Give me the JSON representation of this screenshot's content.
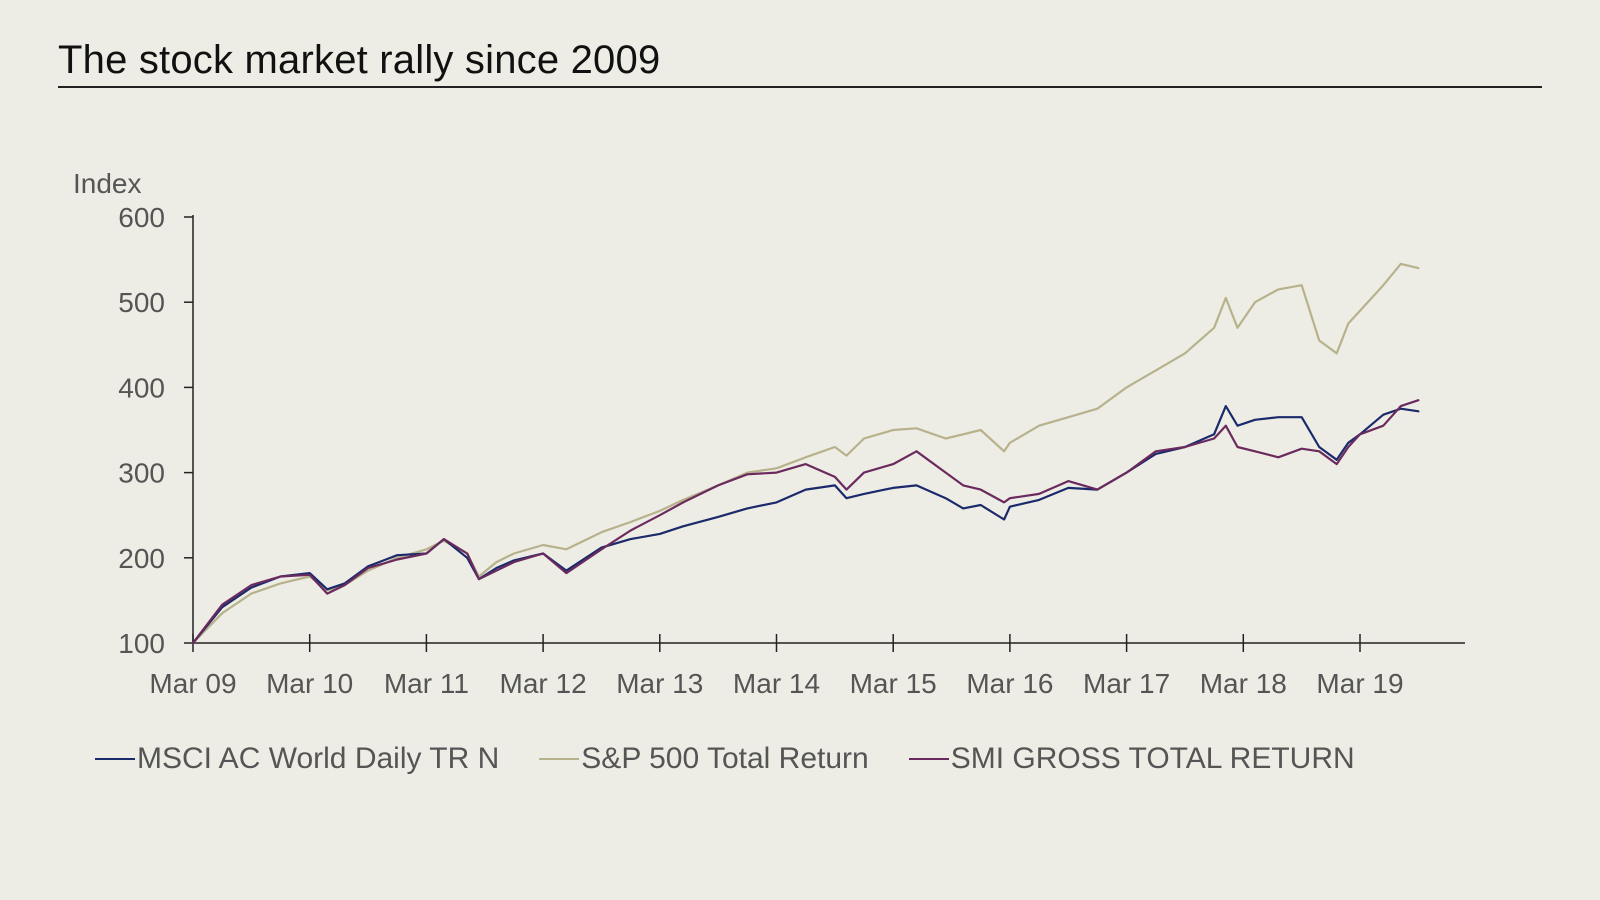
{
  "title": "The stock market rally since 2009",
  "chart_data": {
    "type": "line",
    "title": "The stock market rally since 2009",
    "ylabel": "Index",
    "xlabel": "",
    "ylim": [
      100,
      600
    ],
    "yticks": [
      "100",
      "200",
      "300",
      "400",
      "500",
      "600"
    ],
    "xticks": [
      "Mar 09",
      "Mar 10",
      "Mar 11",
      "Mar 12",
      "Mar 13",
      "Mar 14",
      "Mar 15",
      "Mar 16",
      "Mar 17",
      "Mar 18",
      "Mar 19"
    ],
    "xlim": [
      2009.0,
      2019.9
    ],
    "legend_position": "bottom",
    "grid": false,
    "series": [
      {
        "name": "MSCI AC World Daily TR N",
        "color": "#1b2a6b",
        "x": [
          2009.0,
          2009.25,
          2009.5,
          2009.75,
          2010.0,
          2010.15,
          2010.3,
          2010.5,
          2010.75,
          2011.0,
          2011.15,
          2011.35,
          2011.45,
          2011.6,
          2011.75,
          2012.0,
          2012.2,
          2012.5,
          2012.75,
          2013.0,
          2013.2,
          2013.5,
          2013.75,
          2014.0,
          2014.25,
          2014.5,
          2014.6,
          2014.75,
          2015.0,
          2015.2,
          2015.45,
          2015.6,
          2015.75,
          2015.95,
          2016.0,
          2016.25,
          2016.5,
          2016.75,
          2017.0,
          2017.25,
          2017.5,
          2017.75,
          2017.85,
          2017.95,
          2018.1,
          2018.3,
          2018.5,
          2018.65,
          2018.8,
          2018.9,
          2019.0,
          2019.2,
          2019.35,
          2019.5
        ],
        "values": [
          100,
          142,
          165,
          178,
          182,
          163,
          170,
          190,
          203,
          205,
          222,
          200,
          175,
          188,
          197,
          205,
          185,
          212,
          222,
          228,
          237,
          248,
          258,
          265,
          280,
          285,
          270,
          275,
          282,
          285,
          270,
          258,
          262,
          245,
          260,
          268,
          282,
          280,
          300,
          322,
          330,
          345,
          378,
          355,
          362,
          365,
          365,
          330,
          315,
          335,
          345,
          368,
          375,
          372
        ]
      },
      {
        "name": "S&P 500 Total Return",
        "color": "#b7b28c",
        "x": [
          2009.0,
          2009.25,
          2009.5,
          2009.75,
          2010.0,
          2010.15,
          2010.3,
          2010.5,
          2010.75,
          2011.0,
          2011.15,
          2011.35,
          2011.45,
          2011.6,
          2011.75,
          2012.0,
          2012.2,
          2012.5,
          2012.75,
          2013.0,
          2013.2,
          2013.5,
          2013.75,
          2014.0,
          2014.25,
          2014.5,
          2014.6,
          2014.75,
          2015.0,
          2015.2,
          2015.45,
          2015.6,
          2015.75,
          2015.95,
          2016.0,
          2016.25,
          2016.5,
          2016.75,
          2017.0,
          2017.25,
          2017.5,
          2017.75,
          2017.85,
          2017.95,
          2018.1,
          2018.3,
          2018.5,
          2018.65,
          2018.8,
          2018.9,
          2019.0,
          2019.2,
          2019.35,
          2019.5
        ],
        "values": [
          100,
          135,
          158,
          170,
          178,
          162,
          168,
          185,
          200,
          210,
          220,
          205,
          178,
          195,
          205,
          215,
          210,
          230,
          242,
          255,
          268,
          285,
          300,
          305,
          318,
          330,
          320,
          340,
          350,
          352,
          340,
          345,
          350,
          325,
          335,
          355,
          365,
          375,
          400,
          420,
          440,
          470,
          505,
          470,
          500,
          515,
          520,
          455,
          440,
          475,
          490,
          520,
          545,
          540
        ]
      },
      {
        "name": "SMI GROSS TOTAL RETURN",
        "color": "#6b2a5e",
        "x": [
          2009.0,
          2009.25,
          2009.5,
          2009.75,
          2010.0,
          2010.15,
          2010.3,
          2010.5,
          2010.75,
          2011.0,
          2011.15,
          2011.35,
          2011.45,
          2011.6,
          2011.75,
          2012.0,
          2012.2,
          2012.5,
          2012.75,
          2013.0,
          2013.2,
          2013.5,
          2013.75,
          2014.0,
          2014.25,
          2014.5,
          2014.6,
          2014.75,
          2015.0,
          2015.2,
          2015.45,
          2015.6,
          2015.75,
          2015.95,
          2016.0,
          2016.25,
          2016.5,
          2016.75,
          2017.0,
          2017.25,
          2017.5,
          2017.75,
          2017.85,
          2017.95,
          2018.1,
          2018.3,
          2018.5,
          2018.65,
          2018.8,
          2018.9,
          2019.0,
          2019.2,
          2019.35,
          2019.5
        ],
        "values": [
          100,
          145,
          168,
          178,
          180,
          158,
          168,
          188,
          198,
          205,
          222,
          205,
          175,
          185,
          195,
          205,
          182,
          210,
          232,
          250,
          265,
          285,
          298,
          300,
          310,
          295,
          280,
          300,
          310,
          325,
          300,
          285,
          280,
          265,
          270,
          275,
          290,
          280,
          300,
          325,
          330,
          340,
          355,
          330,
          325,
          318,
          328,
          325,
          310,
          330,
          345,
          355,
          378,
          385
        ]
      }
    ]
  }
}
